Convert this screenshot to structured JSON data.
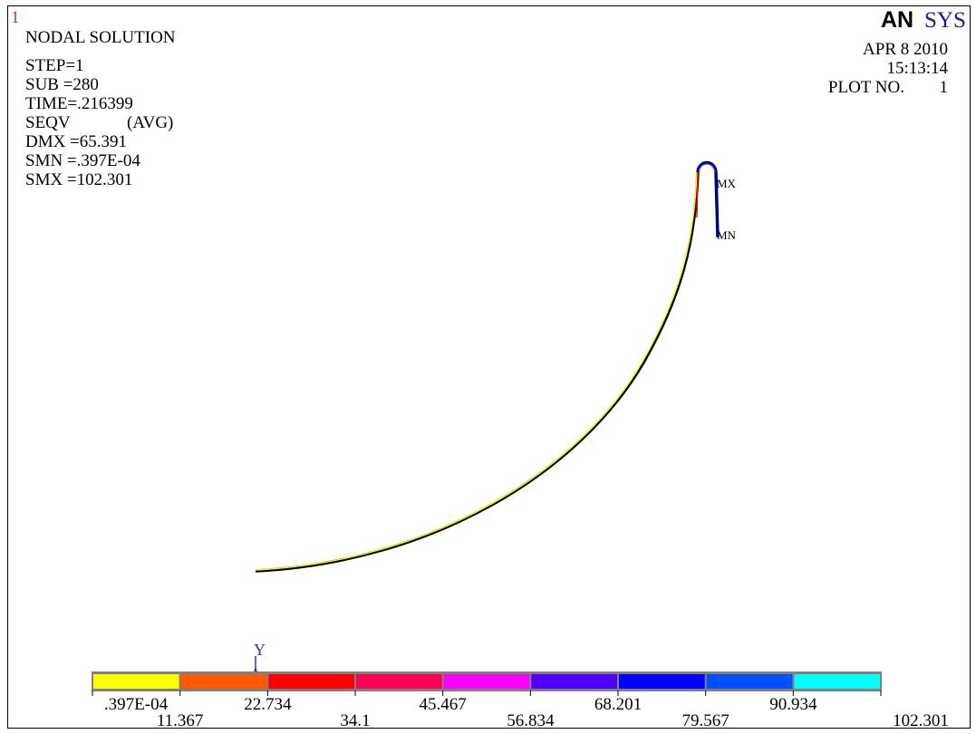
{
  "window": {
    "number": "1"
  },
  "logo": {
    "an": "AN",
    "sys": "SYS"
  },
  "header_left": {
    "title": "NODAL SOLUTION",
    "step": "STEP=1",
    "sub": "SUB =280",
    "time": "TIME=.216399",
    "seqv": "SEQV",
    "avg": "(AVG)",
    "dmx": "DMX =65.391",
    "smn": "SMN =.397E-04",
    "smx": "SMX =102.301"
  },
  "header_right": {
    "date": "APR  8 2010",
    "time": "15:13:14",
    "plot_label": "PLOT NO.",
    "plot_no": "1"
  },
  "markers": {
    "mx": "MX",
    "mn": "MN"
  },
  "triad": {
    "y": "Y"
  },
  "legend": {
    "colors": [
      "#ffff00",
      "#ff5a00",
      "#ff0000",
      "#ff0055",
      "#ff00ff",
      "#5000ff",
      "#0000ff",
      "#0050ff",
      "#00ffff"
    ],
    "upper_labels": [
      ".397E-04",
      "22.734",
      "45.467",
      "68.201",
      "90.934"
    ],
    "lower_labels": [
      "11.367",
      "34.1",
      "56.834",
      "79.567",
      "102.301"
    ]
  }
}
